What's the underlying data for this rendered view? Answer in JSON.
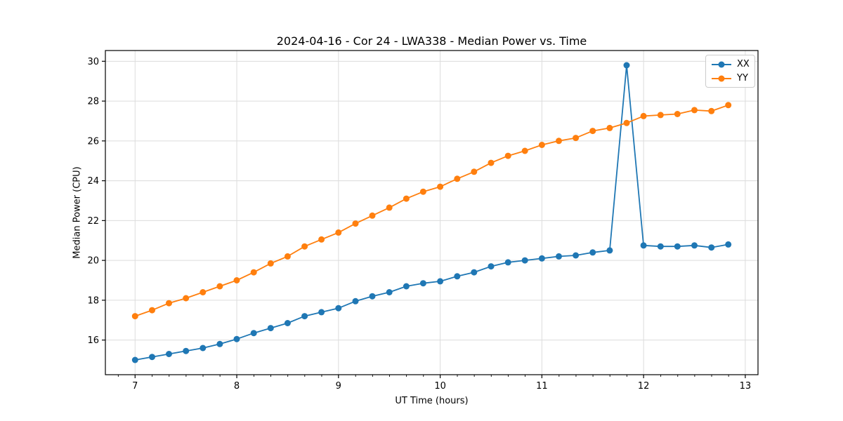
{
  "figure": {
    "background": "#ffffff"
  },
  "colors": {
    "grid": "#dcdcdc",
    "spine": "#000000",
    "text": "#000000",
    "legend_border": "#cccccc",
    "series_xx": "#1f77b4",
    "series_yy": "#ff7f0e"
  },
  "chart_data": {
    "type": "line",
    "title": "2024-04-16 - Cor 24 - LWA338 - Median Power vs. Time",
    "xlabel": "UT Time (hours)",
    "ylabel": "Median Power (CPU)",
    "xlim": [
      6.708,
      13.125
    ],
    "ylim": [
      14.26,
      30.54
    ],
    "xticks": [
      7,
      8,
      9,
      10,
      11,
      12,
      13
    ],
    "yticks": [
      16,
      18,
      20,
      22,
      24,
      26,
      28,
      30
    ],
    "x_minor_tick_step": 0.1667,
    "grid": true,
    "legend_position": "upper right",
    "x": [
      7.0,
      7.167,
      7.333,
      7.5,
      7.667,
      7.833,
      8.0,
      8.167,
      8.333,
      8.5,
      8.667,
      8.833,
      9.0,
      9.167,
      9.333,
      9.5,
      9.667,
      9.833,
      10.0,
      10.167,
      10.333,
      10.5,
      10.667,
      10.833,
      11.0,
      11.167,
      11.333,
      11.5,
      11.667,
      11.833,
      12.0,
      12.167,
      12.333,
      12.5,
      12.667,
      12.833
    ],
    "series": [
      {
        "name": "XX",
        "color": "#1f77b4",
        "values": [
          15.0,
          15.15,
          15.3,
          15.45,
          15.6,
          15.8,
          16.05,
          16.35,
          16.6,
          16.85,
          17.2,
          17.4,
          17.6,
          17.95,
          18.2,
          18.4,
          18.7,
          18.85,
          18.95,
          19.2,
          19.4,
          19.7,
          19.9,
          20.0,
          20.1,
          20.2,
          20.25,
          20.4,
          20.5,
          29.8,
          20.75,
          20.7,
          20.7,
          20.75,
          20.65,
          20.8
        ]
      },
      {
        "name": "YY",
        "color": "#ff7f0e",
        "values": [
          17.2,
          17.5,
          17.85,
          18.1,
          18.4,
          18.7,
          19.0,
          19.4,
          19.85,
          20.2,
          20.7,
          21.05,
          21.4,
          21.85,
          22.25,
          22.65,
          23.1,
          23.45,
          23.7,
          24.1,
          24.45,
          24.9,
          25.25,
          25.5,
          25.8,
          26.0,
          26.15,
          26.5,
          26.65,
          26.9,
          27.25,
          27.3,
          27.35,
          27.55,
          27.5,
          27.8
        ]
      }
    ]
  }
}
